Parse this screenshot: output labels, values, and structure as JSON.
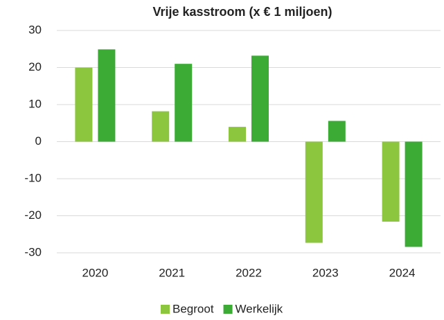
{
  "chart_data": {
    "type": "bar",
    "title": "Vrije kasstroom (x € 1 miljoen)",
    "categories": [
      "2020",
      "2021",
      "2022",
      "2023",
      "2024"
    ],
    "series": [
      {
        "name": "Begroot",
        "color": "#8cc63f",
        "values": [
          20,
          8.2,
          4,
          -27.3,
          -21.6
        ]
      },
      {
        "name": "Werkelijk",
        "color": "#3bab35",
        "values": [
          24.9,
          21,
          23.2,
          5.6,
          -28.4
        ]
      }
    ],
    "ylim": [
      -30,
      30
    ],
    "yticks": [
      -30,
      -20,
      -10,
      0,
      10,
      20,
      30
    ],
    "grid": true,
    "legend": "bottom"
  }
}
